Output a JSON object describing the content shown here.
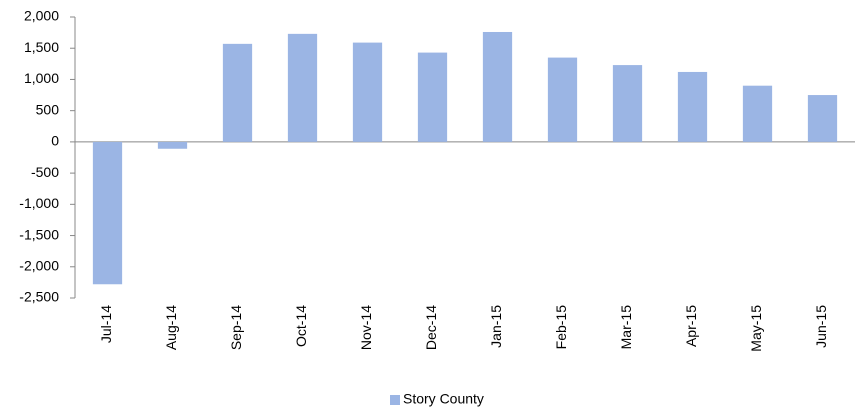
{
  "chart_data": {
    "type": "bar",
    "categories": [
      "Jul-14",
      "Aug-14",
      "Sep-14",
      "Oct-14",
      "Nov-14",
      "Dec-14",
      "Jan-15",
      "Feb-15",
      "Mar-15",
      "Apr-15",
      "May-15",
      "Jun-15"
    ],
    "series": [
      {
        "name": "Story County",
        "color": "#9bb5e4",
        "values": [
          -2280,
          -110,
          1570,
          1730,
          1590,
          1430,
          1760,
          1350,
          1230,
          1120,
          900,
          750
        ]
      }
    ],
    "ylim": [
      -2500,
      2000
    ],
    "yticks": [
      {
        "value": 2000,
        "label": "2,000"
      },
      {
        "value": 1500,
        "label": "1,500"
      },
      {
        "value": 1000,
        "label": "1,000"
      },
      500,
      0,
      -500,
      {
        "value": -1000,
        "label": "-1,000"
      },
      {
        "value": -1500,
        "label": "-1,500"
      },
      {
        "value": -2000,
        "label": "-2,000"
      },
      {
        "value": -2500,
        "label": "-2,500"
      }
    ],
    "grid": false,
    "legend": "bottom"
  }
}
